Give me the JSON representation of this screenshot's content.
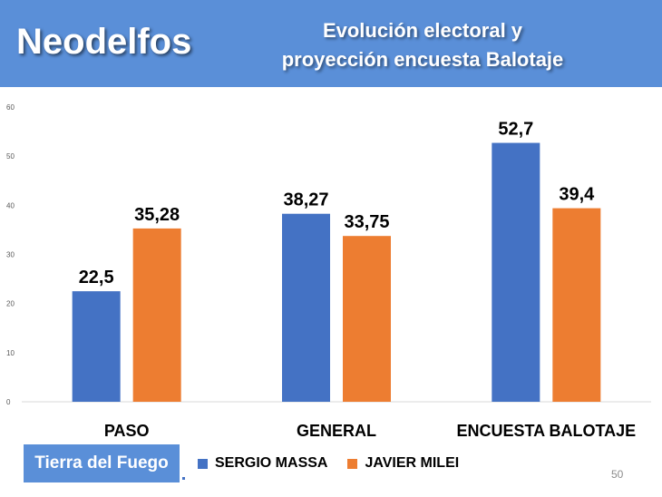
{
  "header": {
    "brand": "Neodelfos",
    "subtitle_line1": "Evolución electoral y",
    "subtitle_line2": "proyección encuesta Balotaje"
  },
  "region": "Tierra del Fuego",
  "page_number": "50",
  "colors": {
    "header_bg": "#5a8fd8",
    "massa": "#4472c4",
    "milei": "#ed7d31"
  },
  "chart_data": {
    "type": "bar",
    "categories": [
      "PASO",
      "GENERAL",
      "ENCUESTA BALOTAJE"
    ],
    "series": [
      {
        "name": "SERGIO MASSA",
        "values": [
          22.5,
          38.27,
          52.7
        ],
        "labels": [
          "22,5",
          "38,27",
          "52,7"
        ],
        "color": "#4472c4"
      },
      {
        "name": "JAVIER MILEI",
        "values": [
          35.28,
          33.75,
          39.4
        ],
        "labels": [
          "35,28",
          "33,75",
          "39,4"
        ],
        "color": "#ed7d31"
      }
    ],
    "ylim": [
      0,
      60
    ],
    "yticks": [
      0,
      10,
      20,
      30,
      40,
      50,
      60
    ],
    "grid": false,
    "legend_position": "bottom"
  }
}
